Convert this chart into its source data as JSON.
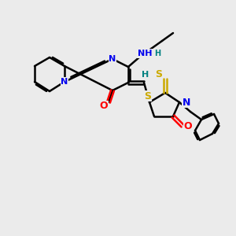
{
  "background_color": "#ebebeb",
  "atom_colors": {
    "N": "#0000ee",
    "O": "#ff0000",
    "S": "#ccaa00",
    "C": "#000000",
    "H": "#008080"
  },
  "bond_color": "#000000",
  "bond_width": 1.8,
  "figsize": [
    3.0,
    3.0
  ],
  "dpi": 100
}
